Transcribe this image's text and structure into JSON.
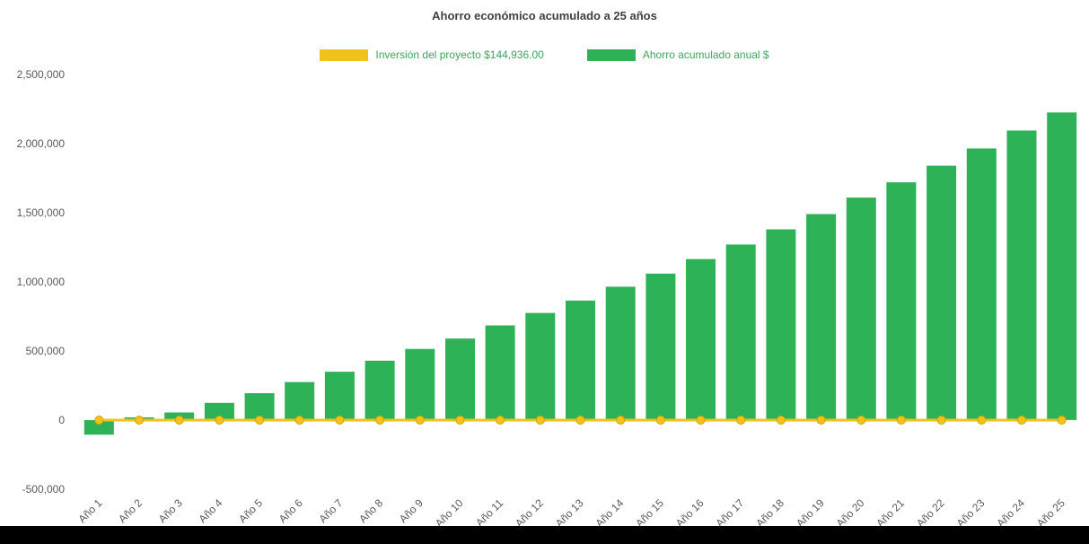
{
  "page": {
    "background_color": "#ffffff",
    "footer_bar_color": "#000000"
  },
  "chart_data": {
    "type": "bar",
    "title": "Ahorro económico acumulado a 25 años",
    "title_color": "#404040",
    "axis_label_color": "#595959",
    "legend_text_color": "#3FA45B",
    "legend_position": "top",
    "grid": false,
    "xlabel": "",
    "ylabel": "",
    "ylim": [
      -500000,
      2500000
    ],
    "ytick_step": 500000,
    "ytick_labels": [
      "-500,000",
      "0",
      "500,000",
      "1,000,000",
      "1,500,000",
      "2,000,000",
      "2,500,000"
    ],
    "categories": [
      "Año 1",
      "Año 2",
      "Año 3",
      "Año 4",
      "Año 5",
      "Año 6",
      "Año 7",
      "Año 8",
      "Año 9",
      "Año 10",
      "Año 11",
      "Año 12",
      "Año 13",
      "Año 14",
      "Año 15",
      "Año 16",
      "Año 17",
      "Año 18",
      "Año 19",
      "Año 20",
      "Año 21",
      "Año 22",
      "Año 23",
      "Año 24",
      "Año 25"
    ],
    "series": [
      {
        "name": "Inversión del proyecto $144,936.00",
        "type": "line",
        "color": "#F1C21B",
        "marker_stroke": "#D9A408",
        "amount": 144936,
        "values": [
          0,
          0,
          0,
          0,
          0,
          0,
          0,
          0,
          0,
          0,
          0,
          0,
          0,
          0,
          0,
          0,
          0,
          0,
          0,
          0,
          0,
          0,
          0,
          0,
          0
        ]
      },
      {
        "name": "Ahorro acumulado anual $",
        "type": "bar",
        "color": "#2DB257",
        "values": [
          -105000,
          20000,
          55000,
          125000,
          195000,
          275000,
          350000,
          430000,
          515000,
          590000,
          685000,
          775000,
          865000,
          965000,
          1060000,
          1165000,
          1270000,
          1380000,
          1490000,
          1610000,
          1720000,
          1840000,
          1965000,
          2095000,
          2225000
        ]
      }
    ]
  }
}
